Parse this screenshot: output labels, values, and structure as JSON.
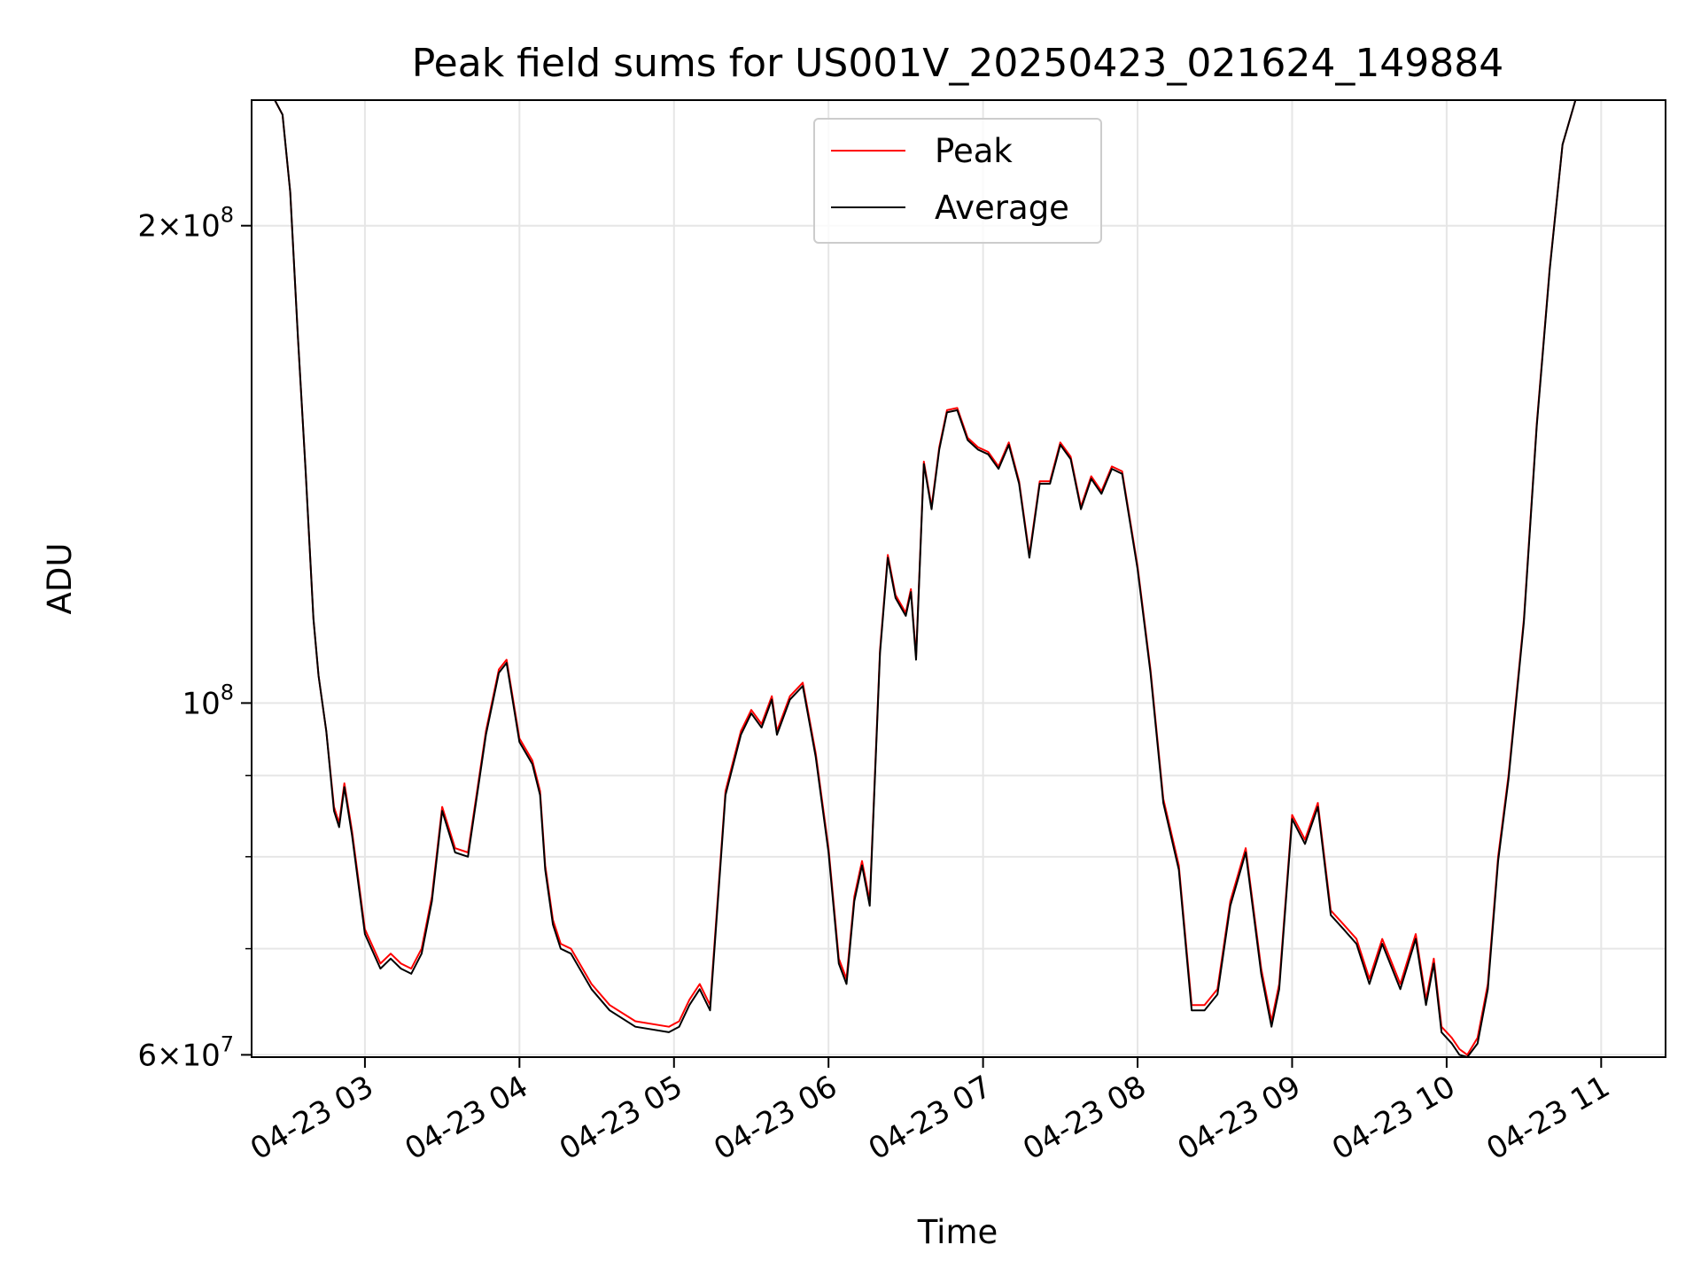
{
  "chart_data": {
    "type": "line",
    "title": "Peak field sums for US001V_20250423_021624_149884",
    "xlabel": "Time",
    "ylabel": "ADU",
    "y_scale": "log",
    "ylim": [
      59800000,
      240000000
    ],
    "xlim": [
      "04-23 02:16",
      "04-23 11:25"
    ],
    "x_ticks": [
      "04-23 03",
      "04-23 04",
      "04-23 05",
      "04-23 06",
      "04-23 07",
      "04-23 08",
      "04-23 09",
      "04-23 10",
      "04-23 11"
    ],
    "y_major_ticks": [
      {
        "value": 60000000,
        "mantissa": "6",
        "exponent": "7"
      },
      {
        "value": 100000000,
        "mantissa": "",
        "exponent": "8"
      },
      {
        "value": 200000000,
        "mantissa": "2",
        "exponent": "8"
      }
    ],
    "y_minor_ticks": [
      70000000,
      80000000,
      90000000
    ],
    "grid": true,
    "legend_position": "top-center",
    "series": [
      {
        "name": "Peak",
        "color": "#ff0000",
        "x": [
          "04-23 02:16",
          "04-23 02:25",
          "04-23 02:28",
          "04-23 02:31",
          "04-23 02:34",
          "04-23 02:37",
          "04-23 02:40",
          "04-23 02:42",
          "04-23 02:45",
          "04-23 02:48",
          "04-23 02:50",
          "04-23 02:52",
          "04-23 02:55",
          "04-23 03:00",
          "04-23 03:06",
          "04-23 03:10",
          "04-23 03:14",
          "04-23 03:18",
          "04-23 03:22",
          "04-23 03:26",
          "04-23 03:30",
          "04-23 03:35",
          "04-23 03:40",
          "04-23 03:44",
          "04-23 03:47",
          "04-23 03:52",
          "04-23 03:55",
          "04-23 04:00",
          "04-23 04:05",
          "04-23 04:08",
          "04-23 04:10",
          "04-23 04:13",
          "04-23 04:16",
          "04-23 04:20",
          "04-23 04:28",
          "04-23 04:35",
          "04-23 04:45",
          "04-23 04:58",
          "04-23 05:02",
          "04-23 05:06",
          "04-23 05:10",
          "04-23 05:14",
          "04-23 05:20",
          "04-23 05:26",
          "04-23 05:30",
          "04-23 05:34",
          "04-23 05:38",
          "04-23 05:40",
          "04-23 05:45",
          "04-23 05:50",
          "04-23 05:55",
          "04-23 06:00",
          "04-23 06:04",
          "04-23 06:07",
          "04-23 06:10",
          "04-23 06:13",
          "04-23 06:16",
          "04-23 06:20",
          "04-23 06:23",
          "04-23 06:26",
          "04-23 06:30",
          "04-23 06:32",
          "04-23 06:34",
          "04-23 06:37",
          "04-23 06:40",
          "04-23 06:43",
          "04-23 06:46",
          "04-23 06:50",
          "04-23 06:54",
          "04-23 06:58",
          "04-23 07:02",
          "04-23 07:06",
          "04-23 07:10",
          "04-23 07:14",
          "04-23 07:18",
          "04-23 07:22",
          "04-23 07:26",
          "04-23 07:30",
          "04-23 07:34",
          "04-23 07:38",
          "04-23 07:42",
          "04-23 07:46",
          "04-23 07:50",
          "04-23 07:54",
          "04-23 08:00",
          "04-23 08:05",
          "04-23 08:10",
          "04-23 08:16",
          "04-23 08:21",
          "04-23 08:26",
          "04-23 08:31",
          "04-23 08:36",
          "04-23 08:42",
          "04-23 08:48",
          "04-23 08:52",
          "04-23 08:55",
          "04-23 09:00",
          "04-23 09:05",
          "04-23 09:10",
          "04-23 09:15",
          "04-23 09:20",
          "04-23 09:25",
          "04-23 09:30",
          "04-23 09:35",
          "04-23 09:42",
          "04-23 09:48",
          "04-23 09:52",
          "04-23 09:55",
          "04-23 09:58",
          "04-23 10:02",
          "04-23 10:05",
          "04-23 10:08",
          "04-23 10:12",
          "04-23 10:16",
          "04-23 10:20",
          "04-23 10:24",
          "04-23 10:30",
          "04-23 10:35",
          "04-23 10:40",
          "04-23 10:45",
          "04-23 10:50",
          "04-23 10:53",
          "04-23 10:56",
          "04-23 11:00",
          "04-23 11:03",
          "04-23 11:06",
          "04-23 11:10",
          "04-23 11:12",
          "04-23 11:14",
          "04-23 11:25"
        ],
        "values": [
          240000000,
          240000000,
          235000000,
          210000000,
          170000000,
          140000000,
          113000000,
          104000000,
          96000000,
          86000000,
          84000000,
          89000000,
          83000000,
          72000000,
          68500000,
          69500000,
          68500000,
          68000000,
          70000000,
          75500000,
          86000000,
          81000000,
          80500000,
          89000000,
          96000000,
          105000000,
          106500000,
          95000000,
          92000000,
          88000000,
          79000000,
          73000000,
          70500000,
          70000000,
          66500000,
          64500000,
          63000000,
          62500000,
          63000000,
          65000000,
          66500000,
          64500000,
          88000000,
          96000000,
          99000000,
          97000000,
          101000000,
          96000000,
          101000000,
          103000000,
          93000000,
          81000000,
          69000000,
          67000000,
          75500000,
          79500000,
          75000000,
          108000000,
          124000000,
          117000000,
          114000000,
          118000000,
          107000000,
          142000000,
          133000000,
          145000000,
          153000000,
          153500000,
          147000000,
          145000000,
          144000000,
          141000000,
          146000000,
          138000000,
          124000000,
          138000000,
          138000000,
          146000000,
          143000000,
          133000000,
          139000000,
          136000000,
          141000000,
          140000000,
          122000000,
          105000000,
          87000000,
          79000000,
          64500000,
          64500000,
          66000000,
          75000000,
          81000000,
          68000000,
          63000000,
          66500000,
          85000000,
          82000000,
          86500000,
          74000000,
          72500000,
          71000000,
          67000000,
          71000000,
          66500000,
          71500000,
          65000000,
          69000000,
          62500000,
          61500000,
          60500000,
          60000000,
          61500000,
          66500000,
          80000000,
          90000000,
          113000000,
          150000000,
          188000000,
          225000000,
          240000000,
          240000000,
          240000000,
          240000000,
          240000000,
          240000000,
          240000000,
          240000000,
          240000000,
          240000000
        ]
      },
      {
        "name": "Average",
        "color": "#000000",
        "x": [
          "04-23 02:16",
          "04-23 02:25",
          "04-23 02:28",
          "04-23 02:31",
          "04-23 02:34",
          "04-23 02:37",
          "04-23 02:40",
          "04-23 02:42",
          "04-23 02:45",
          "04-23 02:48",
          "04-23 02:50",
          "04-23 02:52",
          "04-23 02:55",
          "04-23 03:00",
          "04-23 03:06",
          "04-23 03:10",
          "04-23 03:14",
          "04-23 03:18",
          "04-23 03:22",
          "04-23 03:26",
          "04-23 03:30",
          "04-23 03:35",
          "04-23 03:40",
          "04-23 03:44",
          "04-23 03:47",
          "04-23 03:52",
          "04-23 03:55",
          "04-23 04:00",
          "04-23 04:05",
          "04-23 04:08",
          "04-23 04:10",
          "04-23 04:13",
          "04-23 04:16",
          "04-23 04:20",
          "04-23 04:28",
          "04-23 04:35",
          "04-23 04:45",
          "04-23 04:58",
          "04-23 05:02",
          "04-23 05:06",
          "04-23 05:10",
          "04-23 05:14",
          "04-23 05:20",
          "04-23 05:26",
          "04-23 05:30",
          "04-23 05:34",
          "04-23 05:38",
          "04-23 05:40",
          "04-23 05:45",
          "04-23 05:50",
          "04-23 05:55",
          "04-23 06:00",
          "04-23 06:04",
          "04-23 06:07",
          "04-23 06:10",
          "04-23 06:13",
          "04-23 06:16",
          "04-23 06:20",
          "04-23 06:23",
          "04-23 06:26",
          "04-23 06:30",
          "04-23 06:32",
          "04-23 06:34",
          "04-23 06:37",
          "04-23 06:40",
          "04-23 06:43",
          "04-23 06:46",
          "04-23 06:50",
          "04-23 06:54",
          "04-23 06:58",
          "04-23 07:02",
          "04-23 07:06",
          "04-23 07:10",
          "04-23 07:14",
          "04-23 07:18",
          "04-23 07:22",
          "04-23 07:26",
          "04-23 07:30",
          "04-23 07:34",
          "04-23 07:38",
          "04-23 07:42",
          "04-23 07:46",
          "04-23 07:50",
          "04-23 07:54",
          "04-23 08:00",
          "04-23 08:05",
          "04-23 08:10",
          "04-23 08:16",
          "04-23 08:21",
          "04-23 08:26",
          "04-23 08:31",
          "04-23 08:36",
          "04-23 08:42",
          "04-23 08:48",
          "04-23 08:52",
          "04-23 08:55",
          "04-23 09:00",
          "04-23 09:05",
          "04-23 09:10",
          "04-23 09:15",
          "04-23 09:20",
          "04-23 09:25",
          "04-23 09:30",
          "04-23 09:35",
          "04-23 09:42",
          "04-23 09:48",
          "04-23 09:52",
          "04-23 09:55",
          "04-23 09:58",
          "04-23 10:02",
          "04-23 10:05",
          "04-23 10:08",
          "04-23 10:12",
          "04-23 10:16",
          "04-23 10:20",
          "04-23 10:24",
          "04-23 10:30",
          "04-23 10:35",
          "04-23 10:40",
          "04-23 10:45",
          "04-23 10:50",
          "04-23 10:53",
          "04-23 10:56",
          "04-23 11:00",
          "04-23 11:03",
          "04-23 11:06",
          "04-23 11:10",
          "04-23 11:12",
          "04-23 11:14",
          "04-23 11:25"
        ],
        "values": [
          240000000,
          240000000,
          235000000,
          210000000,
          170000000,
          140000000,
          113000000,
          104000000,
          96000000,
          85500000,
          83500000,
          88500000,
          82500000,
          71500000,
          68000000,
          69000000,
          68000000,
          67500000,
          69500000,
          75000000,
          85500000,
          80500000,
          80000000,
          88500000,
          95500000,
          104500000,
          106000000,
          94500000,
          91500000,
          87500000,
          78500000,
          72500000,
          70000000,
          69500000,
          66000000,
          64000000,
          62500000,
          62000000,
          62500000,
          64500000,
          66000000,
          64000000,
          87500000,
          95500000,
          98500000,
          96500000,
          100500000,
          95500000,
          100500000,
          102500000,
          92500000,
          80500000,
          68500000,
          66500000,
          75000000,
          79000000,
          74500000,
          107500000,
          123500000,
          116500000,
          113500000,
          117500000,
          106500000,
          141500000,
          132500000,
          144500000,
          152500000,
          153000000,
          146500000,
          144500000,
          143500000,
          140500000,
          145500000,
          137500000,
          123500000,
          137500000,
          137500000,
          145500000,
          142500000,
          132500000,
          138500000,
          135500000,
          140500000,
          139500000,
          121500000,
          104500000,
          86500000,
          78500000,
          64000000,
          64000000,
          65500000,
          74500000,
          80500000,
          67500000,
          62500000,
          66000000,
          84500000,
          81500000,
          86000000,
          73500000,
          72000000,
          70500000,
          66500000,
          70500000,
          66000000,
          71000000,
          64500000,
          68500000,
          62000000,
          61000000,
          60000000,
          59800000,
          61000000,
          66000000,
          79500000,
          89500000,
          112500000,
          149500000,
          187500000,
          225000000,
          240000000,
          240000000,
          240000000,
          240000000,
          240000000,
          240000000,
          240000000,
          240000000,
          240000000,
          240000000
        ]
      }
    ]
  }
}
